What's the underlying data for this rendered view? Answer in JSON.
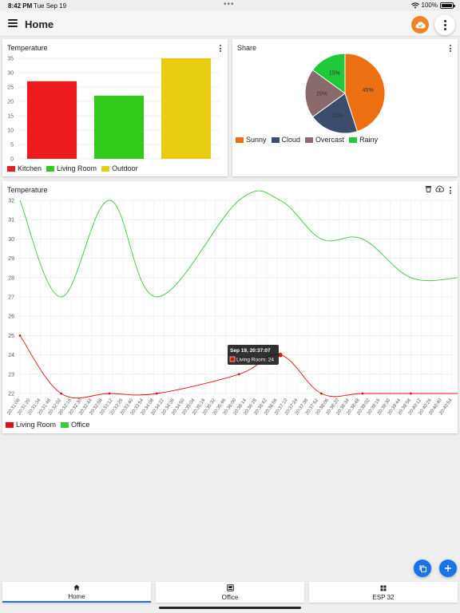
{
  "status": {
    "time": "8:42 PM",
    "date": "Tue Sep 19",
    "battery": "100%"
  },
  "appbar": {
    "title": "Home"
  },
  "bar_card": {
    "title": "Temperature",
    "chart_data": {
      "type": "bar",
      "categories": [
        "Kitchen",
        "Living Room",
        "Outdoor"
      ],
      "values": [
        27,
        22,
        35
      ],
      "colors": [
        "#ec1c1c",
        "#30c91c",
        "#e6cd14"
      ],
      "ylim": [
        0,
        35
      ],
      "yticks": [
        "0",
        "5",
        "10",
        "15",
        "20",
        "25",
        "30",
        "35"
      ]
    },
    "legend": [
      "Kitchen",
      "Living Room",
      "Outdoor"
    ]
  },
  "pie_card": {
    "title": "Share",
    "chart_data": {
      "type": "pie",
      "labels": [
        "Sunny",
        "Cloud",
        "Overcast",
        "Rainy"
      ],
      "values": [
        45,
        20,
        20,
        15
      ],
      "slice_labels": [
        "45%",
        "20%",
        "20%",
        "15%"
      ],
      "colors": [
        "#ee6f12",
        "#3b4d6b",
        "#8a6a6a",
        "#1fc93a"
      ]
    },
    "legend": [
      "Sunny",
      "Cloud",
      "Overcast",
      "Rainy"
    ]
  },
  "line_card": {
    "title": "Temperature",
    "chart_data": {
      "type": "line",
      "x": [
        "20:31:06",
        "20:31:20",
        "20:31:34",
        "20:31:48",
        "20:32:02",
        "20:32:16",
        "20:32:30",
        "20:32:44",
        "20:32:58",
        "20:33:12",
        "20:33:26",
        "20:33:40",
        "20:33:54",
        "20:34:08",
        "20:34:22",
        "20:34:36",
        "20:34:50",
        "20:35:04",
        "20:35:18",
        "20:35:32",
        "20:35:46",
        "20:36:00",
        "20:36:14",
        "20:36:28",
        "20:36:42",
        "20:36:56",
        "20:37:10",
        "20:37:24",
        "20:37:38",
        "20:37:52",
        "20:38:06",
        "20:38:20",
        "20:38:34",
        "20:38:48",
        "20:39:02",
        "20:39:16",
        "20:39:30",
        "20:39:44",
        "20:39:58",
        "20:40:12",
        "20:40:26",
        "20:40:40",
        "20:40:54"
      ],
      "yticks": [
        "22",
        "23",
        "24",
        "25",
        "26",
        "27",
        "28",
        "29",
        "30",
        "31",
        "32"
      ],
      "ylim": [
        22,
        32
      ],
      "series": [
        {
          "name": "Living Room",
          "color": "#e01010",
          "points": [
            [
              0,
              25
            ],
            [
              4,
              22
            ],
            [
              8.7,
              22
            ],
            [
              13.3,
              22
            ],
            [
              21.3,
              23
            ],
            [
              25.3,
              24
            ],
            [
              29.3,
              22
            ],
            [
              33.3,
              22
            ],
            [
              38,
              22
            ],
            [
              42.7,
              22
            ]
          ]
        },
        {
          "name": "Office",
          "color": "#3cc93c",
          "points": [
            [
              0,
              32
            ],
            [
              4,
              27
            ],
            [
              8.7,
              32
            ],
            [
              13.3,
              27
            ],
            [
              21.3,
              32
            ],
            [
              25.3,
              32
            ],
            [
              29.3,
              30
            ],
            [
              33.3,
              30
            ],
            [
              38,
              28
            ],
            [
              42.7,
              28
            ]
          ]
        }
      ],
      "tooltip": {
        "title": "Sep 19, 20:37:07",
        "label": "Living Room: 24"
      }
    },
    "legend": [
      "Living Room",
      "Office"
    ]
  },
  "nav": {
    "tabs": [
      "Home",
      "Office",
      "ESP 32"
    ]
  }
}
